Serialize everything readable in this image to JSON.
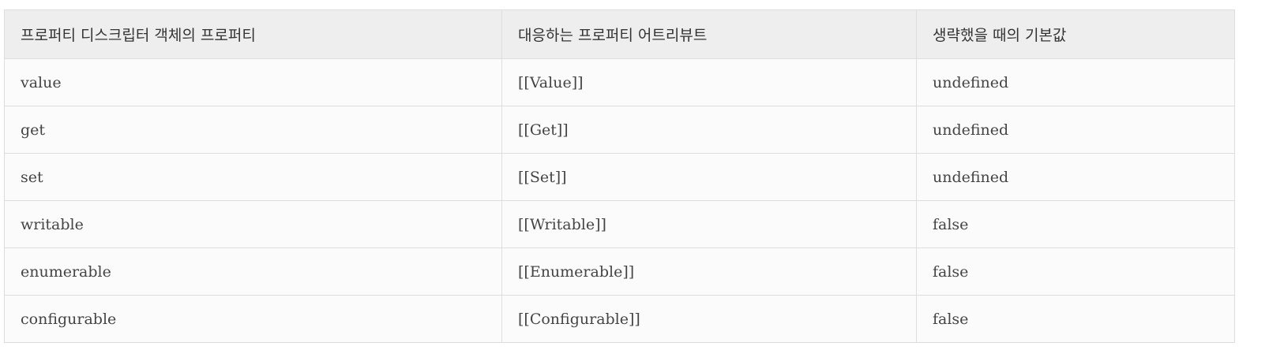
{
  "table": {
    "headers": [
      "프로퍼티 디스크립터 객체의 프로퍼티",
      "대응하는 프로퍼티 어트리뷰트",
      "생략했을 때의 기본값"
    ],
    "rows": [
      [
        "value",
        "[[Value]]",
        "undefined"
      ],
      [
        "get",
        "[[Get]]",
        "undefined"
      ],
      [
        "set",
        "[[Set]]",
        "undefined"
      ],
      [
        "writable",
        "[[Writable]]",
        "false"
      ],
      [
        "enumerable",
        "[[Enumerable]]",
        "false"
      ],
      [
        "configurable",
        "[[Configurable]]",
        "false"
      ]
    ]
  }
}
